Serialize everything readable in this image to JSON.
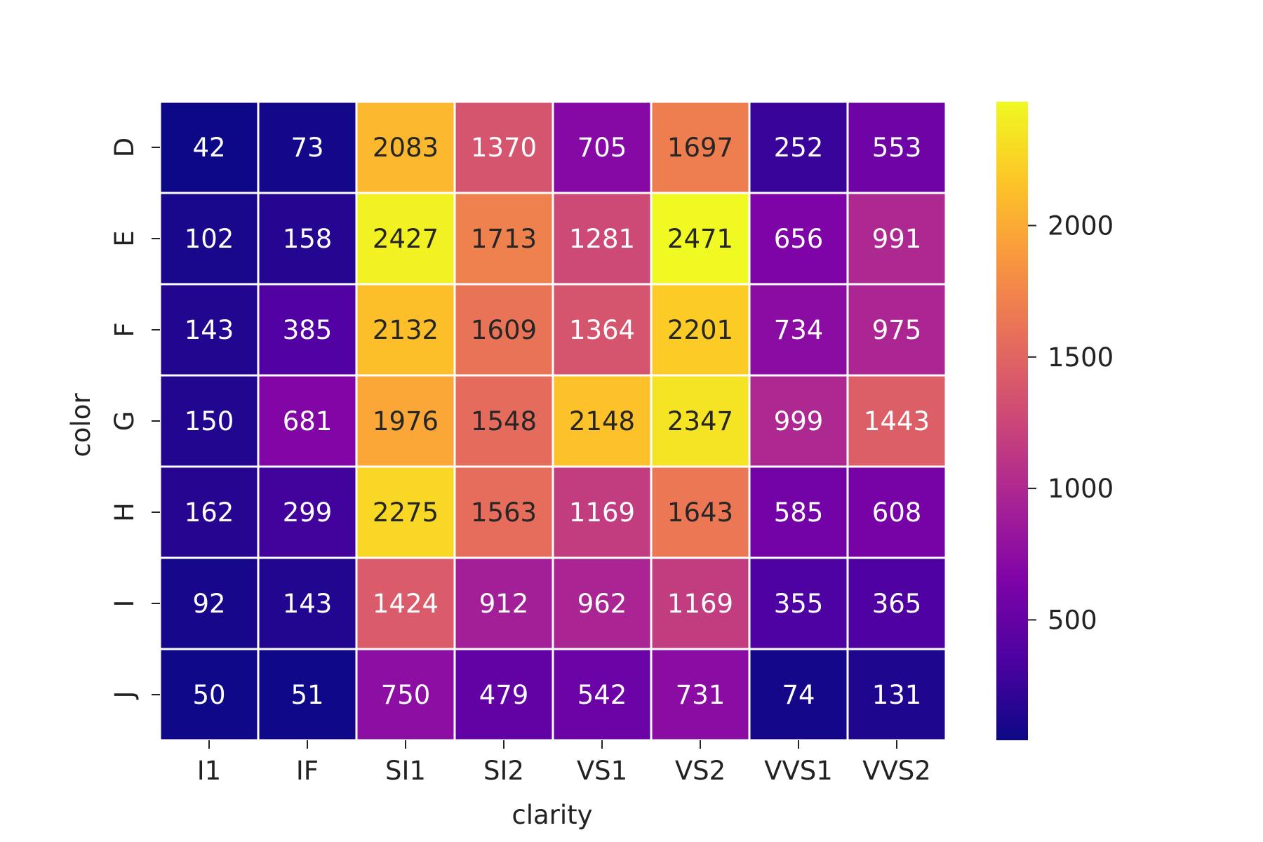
{
  "chart_data": {
    "type": "heatmap",
    "xlabel": "clarity",
    "ylabel": "color",
    "x_categories": [
      "I1",
      "IF",
      "SI1",
      "SI2",
      "VS1",
      "VS2",
      "VVS1",
      "VVS2"
    ],
    "y_categories": [
      "D",
      "E",
      "F",
      "G",
      "H",
      "I",
      "J"
    ],
    "values": [
      [
        42,
        73,
        2083,
        1370,
        705,
        1697,
        252,
        553
      ],
      [
        102,
        158,
        2427,
        1713,
        1281,
        2471,
        656,
        991
      ],
      [
        143,
        385,
        2132,
        1609,
        1364,
        2201,
        734,
        975
      ],
      [
        150,
        681,
        1976,
        1548,
        2148,
        2347,
        999,
        1443
      ],
      [
        162,
        299,
        2275,
        1563,
        1169,
        1643,
        585,
        608
      ],
      [
        92,
        143,
        1424,
        912,
        962,
        1169,
        355,
        365
      ],
      [
        50,
        51,
        750,
        479,
        542,
        731,
        74,
        131
      ]
    ],
    "colormap": "plasma",
    "color_range": [
      42,
      2471
    ],
    "colorbar": {
      "ticks": [
        500,
        1000,
        1500,
        2000
      ],
      "tick_labels": [
        "500",
        "1000",
        "1500",
        "2000"
      ]
    },
    "grid": false
  }
}
